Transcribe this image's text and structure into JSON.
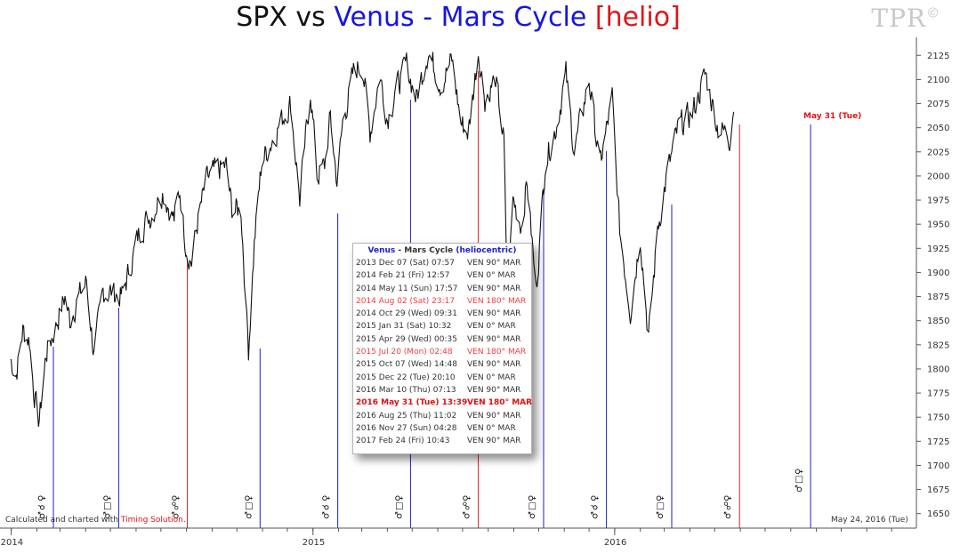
{
  "title": {
    "part1": "SPX vs ",
    "part2": "Venus",
    "part3": " - ",
    "part4": "Mars Cycle",
    "part5": " [helio]"
  },
  "brand": "TPR",
  "brand_mark": "©",
  "credit": {
    "text": "Calculated and charted with ",
    "link": "Timing Solution",
    "end": "."
  },
  "current_date": "May 24, 2016 (Tue)",
  "marker_label": "May 31 (Tue)",
  "legend": {
    "title_a": "Venus",
    "title_b": " - Mars Cycle ",
    "title_c": "(heliocentric)",
    "rows": [
      {
        "date": "2013 Dec 07 (Sat) 07:57",
        "aspect": "VEN  90°  MAR",
        "style": "normal"
      },
      {
        "date": "2014 Feb 21 (Fri) 12:57",
        "aspect": "VEN   0°  MAR",
        "style": "normal"
      },
      {
        "date": "2014 May 11 (Sun) 17:57",
        "aspect": "VEN  90°  MAR",
        "style": "normal"
      },
      {
        "date": "2014 Aug 02 (Sat) 23:17",
        "aspect": "VEN  180°  MAR",
        "style": "red"
      },
      {
        "date": "2014 Oct 29 (Wed) 09:31",
        "aspect": "VEN  90°  MAR",
        "style": "normal"
      },
      {
        "date": "2015 Jan 31 (Sat) 10:32",
        "aspect": "VEN   0°  MAR",
        "style": "normal"
      },
      {
        "date": "2015 Apr 29 (Wed) 00:35",
        "aspect": "VEN  90°  MAR",
        "style": "normal"
      },
      {
        "date": "2015 Jul 20 (Mon) 02:48",
        "aspect": "VEN  180°  MAR",
        "style": "red"
      },
      {
        "date": "2015 Oct 07 (Wed) 14:48",
        "aspect": "VEN  90°  MAR",
        "style": "normal"
      },
      {
        "date": "2015 Dec 22 (Tue) 20:10",
        "aspect": "VEN   0°  MAR",
        "style": "normal"
      },
      {
        "date": "2016 Mar 10 (Thu) 07:13",
        "aspect": "VEN  90°  MAR",
        "style": "normal"
      },
      {
        "date": "2016 May 31 (Tue) 13:39",
        "aspect": "VEN  180°  MAR",
        "style": "bold"
      },
      {
        "date": "2016 Aug 25 (Thu) 11:02",
        "aspect": "VEN  90°  MAR",
        "style": "normal"
      },
      {
        "date": "2016 Nov 27 (Sun) 04:28",
        "aspect": "VEN   0°  MAR",
        "style": "normal"
      },
      {
        "date": "2017 Feb 24 (Fri) 10:43",
        "aspect": "VEN  90°  MAR",
        "style": "normal"
      }
    ]
  },
  "colors": {
    "price": "#111111",
    "square": "#2020c8",
    "opposition": "#e02020",
    "conjunction": "#2020c8",
    "title_blue": "#1515e0",
    "title_red": "#e01515"
  },
  "chart_data": {
    "type": "line",
    "ylim": [
      1635,
      2140
    ],
    "y_ticks": [
      1650,
      1675,
      1700,
      1725,
      1750,
      1775,
      1800,
      1825,
      1850,
      1875,
      1900,
      1925,
      1950,
      1975,
      2000,
      2025,
      2050,
      2075,
      2100,
      2125
    ],
    "x_range": [
      "2013-12-27",
      "2016-12-31"
    ],
    "x_tick_labels": [
      {
        "label": "2014",
        "date": "2014-01-01"
      },
      {
        "label": "2015",
        "date": "2015-01-01"
      },
      {
        "label": "2016",
        "date": "2016-01-01"
      }
    ],
    "series": [
      {
        "values": [
          [
            "2013-12-31",
            1810
          ],
          [
            "2014-01-07",
            1795
          ],
          [
            "2014-01-15",
            1840
          ],
          [
            "2014-01-23",
            1830
          ],
          [
            "2014-01-28",
            1780
          ],
          [
            "2014-02-03",
            1745
          ],
          [
            "2014-02-05",
            1755
          ],
          [
            "2014-02-12",
            1815
          ],
          [
            "2014-02-24",
            1845
          ],
          [
            "2014-03-07",
            1875
          ],
          [
            "2014-03-13",
            1850
          ],
          [
            "2014-03-21",
            1870
          ],
          [
            "2014-04-02",
            1890
          ],
          [
            "2014-04-11",
            1815
          ],
          [
            "2014-04-22",
            1880
          ],
          [
            "2014-05-01",
            1880
          ],
          [
            "2014-05-15",
            1875
          ],
          [
            "2014-05-23",
            1900
          ],
          [
            "2014-06-06",
            1945
          ],
          [
            "2014-06-20",
            1960
          ],
          [
            "2014-07-03",
            1985
          ],
          [
            "2014-07-17",
            1955
          ],
          [
            "2014-07-24",
            1985
          ],
          [
            "2014-07-31",
            1930
          ],
          [
            "2014-08-07",
            1910
          ],
          [
            "2014-08-14",
            1950
          ],
          [
            "2014-08-25",
            1995
          ],
          [
            "2014-09-05",
            2005
          ],
          [
            "2014-09-18",
            2010
          ],
          [
            "2014-09-25",
            1965
          ],
          [
            "2014-10-06",
            1965
          ],
          [
            "2014-10-15",
            1820
          ],
          [
            "2014-10-22",
            1930
          ],
          [
            "2014-10-31",
            2015
          ],
          [
            "2014-11-14",
            2040
          ],
          [
            "2014-11-28",
            2065
          ],
          [
            "2014-12-05",
            2075
          ],
          [
            "2014-12-16",
            1975
          ],
          [
            "2014-12-29",
            2090
          ],
          [
            "2015-01-06",
            2000
          ],
          [
            "2015-01-15",
            2010
          ],
          [
            "2015-01-22",
            2060
          ],
          [
            "2015-01-30",
            1995
          ],
          [
            "2015-02-06",
            2055
          ],
          [
            "2015-02-20",
            2110
          ],
          [
            "2015-03-02",
            2115
          ],
          [
            "2015-03-11",
            2045
          ],
          [
            "2015-03-23",
            2105
          ],
          [
            "2015-04-01",
            2060
          ],
          [
            "2015-04-14",
            2095
          ],
          [
            "2015-04-24",
            2115
          ],
          [
            "2015-05-06",
            2080
          ],
          [
            "2015-05-20",
            2130
          ],
          [
            "2015-06-05",
            2095
          ],
          [
            "2015-06-18",
            2120
          ],
          [
            "2015-06-29",
            2055
          ],
          [
            "2015-07-08",
            2045
          ],
          [
            "2015-07-20",
            2130
          ],
          [
            "2015-07-28",
            2080
          ],
          [
            "2015-08-10",
            2100
          ],
          [
            "2015-08-20",
            2035
          ],
          [
            "2015-08-24",
            1870
          ],
          [
            "2015-08-31",
            1975
          ],
          [
            "2015-09-10",
            1950
          ],
          [
            "2015-09-17",
            1995
          ],
          [
            "2015-09-28",
            1880
          ],
          [
            "2015-10-09",
            2015
          ],
          [
            "2015-10-22",
            2050
          ],
          [
            "2015-11-03",
            2105
          ],
          [
            "2015-11-13",
            2025
          ],
          [
            "2015-12-01",
            2100
          ],
          [
            "2015-12-14",
            2010
          ],
          [
            "2015-12-29",
            2080
          ],
          [
            "2016-01-07",
            1945
          ],
          [
            "2016-01-20",
            1860
          ],
          [
            "2016-02-01",
            1940
          ],
          [
            "2016-02-11",
            1830
          ],
          [
            "2016-02-22",
            1945
          ],
          [
            "2016-03-04",
            2000
          ],
          [
            "2016-03-18",
            2050
          ],
          [
            "2016-04-04",
            2065
          ],
          [
            "2016-04-20",
            2105
          ],
          [
            "2016-05-05",
            2050
          ],
          [
            "2016-05-13",
            2045
          ],
          [
            "2016-05-19",
            2040
          ],
          [
            "2016-05-24",
            2075
          ]
        ]
      }
    ],
    "event_lines": [
      {
        "date": "2013-12-07",
        "kind": "square",
        "glyph": "♀□♂"
      },
      {
        "date": "2014-02-21",
        "kind": "conjunction",
        "glyph": "♀☌♂"
      },
      {
        "date": "2014-05-11",
        "kind": "square",
        "glyph": "♀□♂"
      },
      {
        "date": "2014-08-02",
        "kind": "opposition",
        "glyph": "♀☍♂"
      },
      {
        "date": "2014-10-29",
        "kind": "square",
        "glyph": "♀□♂"
      },
      {
        "date": "2015-01-31",
        "kind": "conjunction",
        "glyph": "♀☌♂"
      },
      {
        "date": "2015-04-29",
        "kind": "square",
        "glyph": "♀□♂"
      },
      {
        "date": "2015-07-20",
        "kind": "opposition",
        "glyph": "♀☍♂"
      },
      {
        "date": "2015-10-07",
        "kind": "square",
        "glyph": "♀□♂"
      },
      {
        "date": "2015-12-22",
        "kind": "conjunction",
        "glyph": "♀☌♂"
      },
      {
        "date": "2016-03-10",
        "kind": "square",
        "glyph": "♀□♂"
      },
      {
        "date": "2016-05-31",
        "kind": "opposition",
        "glyph": "♀☍♂"
      },
      {
        "date": "2016-08-25",
        "kind": "square",
        "glyph": "♀□♂"
      }
    ]
  }
}
